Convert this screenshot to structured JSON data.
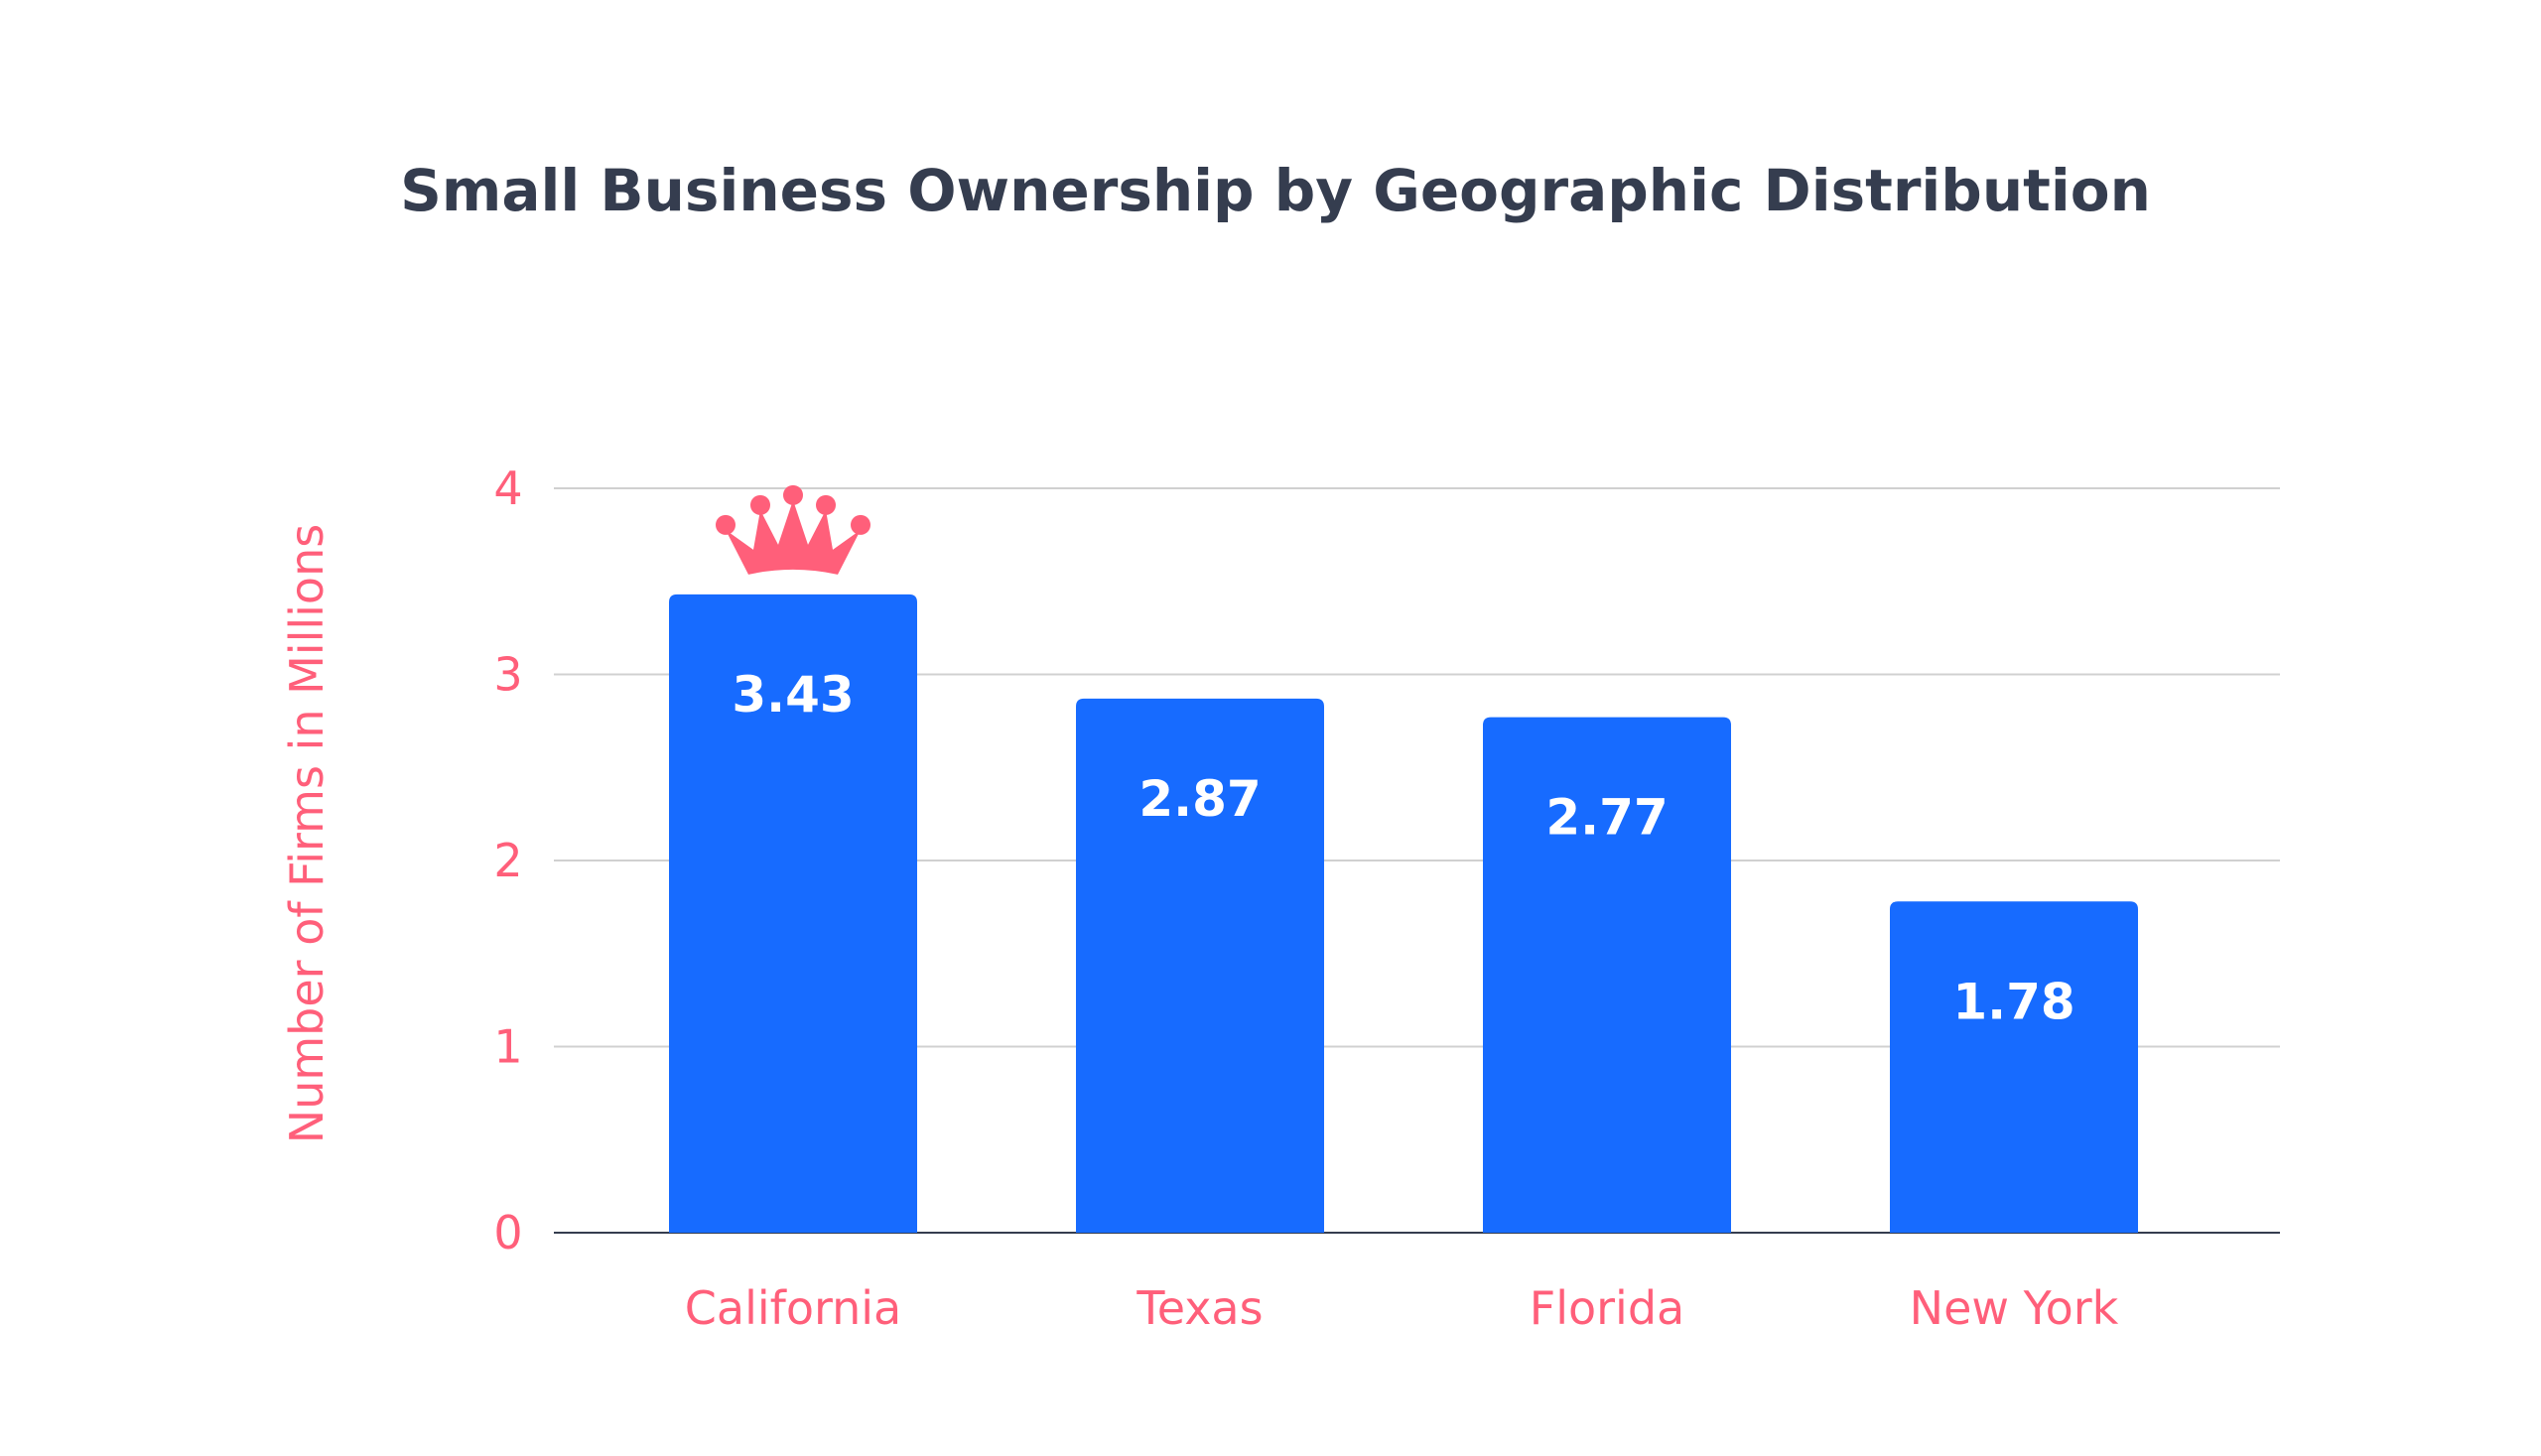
{
  "chart_data": {
    "type": "bar",
    "title": "Small Business Ownership by Geographic Distribution",
    "xlabel": "",
    "ylabel": "Number of Firms in Millions",
    "categories": [
      "California",
      "Texas",
      "Florida",
      "New York"
    ],
    "values": [
      3.43,
      2.87,
      2.77,
      1.78
    ],
    "data_labels": [
      "3.43",
      "2.87",
      "2.77",
      "1.78"
    ],
    "ylim": [
      0,
      4
    ],
    "yticks": [
      0,
      1,
      2,
      3,
      4
    ],
    "grid": true,
    "legend": "none",
    "highlight": {
      "category": "California",
      "icon": "crown-icon"
    },
    "colors": {
      "bar": "#176bff",
      "accent": "#ff5f7a",
      "title": "#353d4f",
      "grid": "#d0d0d0",
      "axis": "#353d4f"
    }
  }
}
